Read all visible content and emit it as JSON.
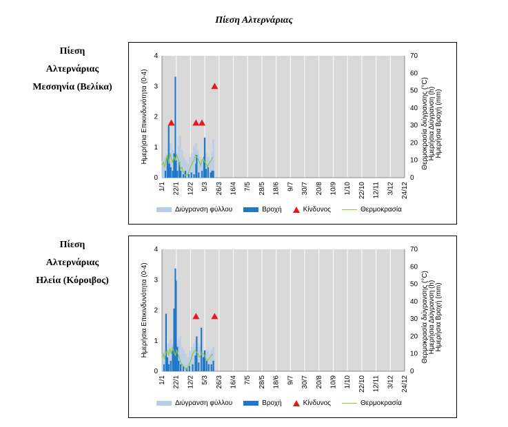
{
  "page_title": "Πίεση Αλτερνάριας",
  "colors": {
    "plot_bg": "#d9d9d9",
    "leaf": "#b8cce4",
    "rain": "#1f78c8",
    "risk": "#e31a1c",
    "temp": "#8bc34a",
    "grid": "#ffffff"
  },
  "panels": [
    {
      "label_lines": [
        "Πίεση",
        "Αλτερνάριας",
        "Μεσσηνία (Βελίκα)"
      ],
      "legend": {
        "leaf": "Διύγρανση φύλλου",
        "rain": "Βροχή",
        "risk": "Κίνδυνος",
        "temp": "Θερμοκρασία"
      },
      "axis_left_label": "Ημερήσια Επικινδυνότητα (0-4)",
      "axis_right_label": "Θερμοκρασία διύγρανσης (°C)",
      "axis_right_label2": "Ημερήσια Διύγρανση (h)",
      "axis_right_label3": "Ημερήσια Βροχή (mm)",
      "left_ticks": [
        "0",
        "1",
        "2",
        "3",
        "4"
      ],
      "right_ticks": [
        "0",
        "10",
        "20",
        "30",
        "40",
        "50",
        "60",
        "70"
      ],
      "x_ticks": [
        "1/1",
        "22/1",
        "12/2",
        "5/3",
        "26/3",
        "16/4",
        "7/5",
        "28/5",
        "18/6",
        "9/7",
        "30/7",
        "20/8",
        "10/9",
        "1/10",
        "22/10",
        "12/11",
        "3/12",
        "24/12"
      ]
    },
    {
      "label_lines": [
        "Πίεση",
        "Αλτερνάριας",
        "Ηλεία (Κόροιβος)"
      ],
      "legend": {
        "leaf": "Διύγρανση φύλλου",
        "rain": "Βροχή",
        "risk": "Κίνδυνος",
        "temp": "Θερμοκρασία"
      },
      "axis_left_label": "Ημερήσια Επικινδυνότητα (0-4)",
      "axis_right_label": "Θερμοκρασία διύγρανσης (°C)",
      "axis_right_label2": "Ημερήσια Διύγρανση (h)",
      "axis_right_label3": "Ημερήσια Βροχή (mm)",
      "left_ticks": [
        "0",
        "1",
        "2",
        "3",
        "4"
      ],
      "right_ticks": [
        "0",
        "10",
        "20",
        "30",
        "40",
        "50",
        "60",
        "70"
      ],
      "x_ticks": [
        "1/1",
        "22/1",
        "12/2",
        "5/3",
        "26/3",
        "16/4",
        "7/5",
        "28/5",
        "18/6",
        "9/7",
        "30/7",
        "20/8",
        "10/9",
        "1/10",
        "22/10",
        "12/11",
        "3/12",
        "24/12"
      ]
    }
  ],
  "chart_data": [
    {
      "type": "bar",
      "x_domain_days": [
        1,
        365
      ],
      "ylim_left": [
        0,
        4
      ],
      "ylim_right": [
        0,
        70
      ],
      "series": [
        {
          "name": "Βροχή",
          "axis": "right",
          "points": [
            [
              6,
              4
            ],
            [
              9,
              12
            ],
            [
              11,
              30
            ],
            [
              12,
              8
            ],
            [
              14,
              6
            ],
            [
              17,
              4
            ],
            [
              19,
              14
            ],
            [
              21,
              58
            ],
            [
              22,
              10
            ],
            [
              24,
              4
            ],
            [
              27,
              9
            ],
            [
              29,
              4
            ],
            [
              33,
              2
            ],
            [
              36,
              4
            ],
            [
              41,
              2
            ],
            [
              45,
              3
            ],
            [
              49,
              2
            ],
            [
              52,
              8
            ],
            [
              53,
              13
            ],
            [
              56,
              3
            ],
            [
              61,
              4
            ],
            [
              64,
              12
            ],
            [
              65,
              23
            ],
            [
              67,
              5
            ],
            [
              70,
              6
            ],
            [
              74,
              3
            ],
            [
              76,
              4
            ],
            [
              78,
              4
            ]
          ]
        },
        {
          "name": "Διύγρανση φύλλου",
          "axis": "right",
          "points": [
            [
              2,
              10
            ],
            [
              5,
              12
            ],
            [
              8,
              14
            ],
            [
              11,
              18
            ],
            [
              14,
              20
            ],
            [
              17,
              16
            ],
            [
              20,
              12
            ],
            [
              23,
              14
            ],
            [
              26,
              18
            ],
            [
              28,
              24
            ],
            [
              31,
              16
            ],
            [
              34,
              12
            ],
            [
              37,
              10
            ],
            [
              40,
              8
            ],
            [
              43,
              12
            ],
            [
              46,
              14
            ],
            [
              49,
              18
            ],
            [
              52,
              20
            ],
            [
              55,
              16
            ],
            [
              58,
              12
            ],
            [
              61,
              10
            ],
            [
              64,
              12
            ],
            [
              67,
              14
            ],
            [
              70,
              12
            ],
            [
              73,
              10
            ],
            [
              76,
              14
            ],
            [
              78,
              22
            ]
          ]
        },
        {
          "name": "Θερμοκρασία",
          "axis": "right",
          "points": [
            [
              1,
              7
            ],
            [
              3,
              9
            ],
            [
              5,
              6
            ],
            [
              7,
              10
            ],
            [
              9,
              13
            ],
            [
              11,
              8
            ],
            [
              13,
              14
            ],
            [
              15,
              11
            ],
            [
              17,
              9
            ],
            [
              19,
              12
            ],
            [
              21,
              10
            ],
            [
              23,
              13
            ],
            [
              25,
              11
            ],
            [
              27,
              9
            ],
            [
              29,
              5
            ],
            [
              31,
              6
            ],
            [
              33,
              3
            ],
            [
              35,
              2
            ],
            [
              37,
              1
            ],
            [
              39,
              2
            ],
            [
              41,
              3
            ],
            [
              43,
              5
            ],
            [
              45,
              7
            ],
            [
              47,
              9
            ],
            [
              49,
              10
            ],
            [
              51,
              13
            ],
            [
              53,
              12
            ],
            [
              55,
              11
            ],
            [
              57,
              9
            ],
            [
              59,
              7
            ],
            [
              61,
              10
            ],
            [
              63,
              11
            ],
            [
              65,
              9
            ],
            [
              67,
              8
            ],
            [
              69,
              6
            ],
            [
              71,
              8
            ],
            [
              73,
              9
            ],
            [
              75,
              10
            ],
            [
              77,
              12
            ]
          ]
        },
        {
          "name": "Κίνδυνος",
          "axis": "left",
          "points": [
            [
              15,
              1.8
            ],
            [
              52,
              1.8
            ],
            [
              61,
              1.8
            ],
            [
              80,
              3.0
            ]
          ]
        }
      ]
    },
    {
      "type": "bar",
      "x_domain_days": [
        1,
        365
      ],
      "ylim_left": [
        0,
        4
      ],
      "ylim_right": [
        0,
        70
      ],
      "series": [
        {
          "name": "Βροχή",
          "axis": "right",
          "points": [
            [
              4,
              4
            ],
            [
              7,
              33
            ],
            [
              9,
              8
            ],
            [
              11,
              4
            ],
            [
              14,
              6
            ],
            [
              17,
              12
            ],
            [
              19,
              36
            ],
            [
              21,
              59
            ],
            [
              22,
              52
            ],
            [
              24,
              14
            ],
            [
              26,
              6
            ],
            [
              29,
              4
            ],
            [
              33,
              3
            ],
            [
              38,
              2
            ],
            [
              42,
              3
            ],
            [
              47,
              4
            ],
            [
              51,
              9
            ],
            [
              53,
              20
            ],
            [
              56,
              5
            ],
            [
              60,
              25
            ],
            [
              63,
              8
            ],
            [
              65,
              12
            ],
            [
              68,
              6
            ],
            [
              71,
              4
            ],
            [
              75,
              4
            ],
            [
              78,
              6
            ]
          ]
        },
        {
          "name": "Διύγρανση φύλλου",
          "axis": "right",
          "points": [
            [
              2,
              10
            ],
            [
              5,
              12
            ],
            [
              8,
              14
            ],
            [
              11,
              16
            ],
            [
              14,
              18
            ],
            [
              17,
              16
            ],
            [
              20,
              14
            ],
            [
              23,
              16
            ],
            [
              26,
              18
            ],
            [
              28,
              20
            ],
            [
              31,
              14
            ],
            [
              34,
              12
            ],
            [
              37,
              10
            ],
            [
              40,
              8
            ],
            [
              43,
              12
            ],
            [
              46,
              14
            ],
            [
              49,
              16
            ],
            [
              52,
              18
            ],
            [
              55,
              16
            ],
            [
              58,
              14
            ],
            [
              61,
              12
            ],
            [
              64,
              10
            ],
            [
              67,
              12
            ],
            [
              70,
              12
            ],
            [
              73,
              10
            ],
            [
              76,
              12
            ],
            [
              78,
              14
            ]
          ]
        },
        {
          "name": "Θερμοκρασία",
          "axis": "right",
          "points": [
            [
              1,
              8
            ],
            [
              3,
              10
            ],
            [
              5,
              7
            ],
            [
              7,
              11
            ],
            [
              9,
              12
            ],
            [
              11,
              9
            ],
            [
              13,
              13
            ],
            [
              15,
              10
            ],
            [
              17,
              14
            ],
            [
              19,
              11
            ],
            [
              21,
              9
            ],
            [
              23,
              12
            ],
            [
              25,
              10
            ],
            [
              27,
              8
            ],
            [
              29,
              5
            ],
            [
              31,
              4
            ],
            [
              33,
              3
            ],
            [
              35,
              2
            ],
            [
              37,
              1
            ],
            [
              39,
              2
            ],
            [
              41,
              3
            ],
            [
              43,
              5
            ],
            [
              45,
              7
            ],
            [
              47,
              10
            ],
            [
              49,
              11
            ],
            [
              51,
              12
            ],
            [
              53,
              11
            ],
            [
              55,
              10
            ],
            [
              57,
              8
            ],
            [
              59,
              9
            ],
            [
              61,
              11
            ],
            [
              63,
              10
            ],
            [
              65,
              9
            ],
            [
              67,
              7
            ],
            [
              69,
              6
            ],
            [
              71,
              7
            ],
            [
              73,
              8
            ],
            [
              75,
              9
            ],
            [
              77,
              10
            ]
          ]
        },
        {
          "name": "Κίνδυνος",
          "axis": "left",
          "points": [
            [
              52,
              1.8
            ],
            [
              80,
              1.8
            ]
          ]
        }
      ]
    }
  ]
}
